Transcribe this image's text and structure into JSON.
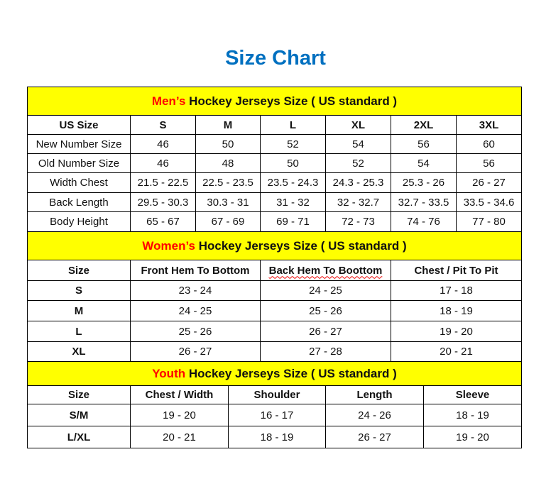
{
  "title": "Size Chart",
  "colors": {
    "title": "#0070C0",
    "header_bg": "#FFFF00",
    "accent_red": "#FF0000"
  },
  "men": {
    "header_accent": "Men’s",
    "header_rest": " Hockey Jerseys Size ( US standard )",
    "columns": [
      "US Size",
      "S",
      "M",
      "L",
      "XL",
      "2XL",
      "3XL"
    ],
    "rows": [
      [
        "New Number Size",
        "46",
        "50",
        "52",
        "54",
        "56",
        "60"
      ],
      [
        "Old Number Size",
        "46",
        "48",
        "50",
        "52",
        "54",
        "56"
      ],
      [
        "Width Chest",
        "21.5 - 22.5",
        "22.5 - 23.5",
        "23.5 - 24.3",
        "24.3 - 25.3",
        "25.3 - 26",
        "26 - 27"
      ],
      [
        "Back Length",
        "29.5 - 30.3",
        "30.3 - 31",
        "31 - 32",
        "32 - 32.7",
        "32.7 - 33.5",
        "33.5 - 34.6"
      ],
      [
        "Body Height",
        "65 - 67",
        "67 - 69",
        "69 - 71",
        "72 - 73",
        "74 - 76",
        "77 - 80"
      ]
    ]
  },
  "women": {
    "header_accent": "Women’s",
    "header_rest": " Hockey Jerseys Size ( US standard )",
    "columns": [
      "Size",
      "Front Hem To Bottom",
      "Back Hem To Boottom",
      "Chest / Pit To Pit"
    ],
    "rows": [
      [
        "S",
        "23 - 24",
        "24 - 25",
        "17 - 18"
      ],
      [
        "M",
        "24 - 25",
        "25 - 26",
        "18 - 19"
      ],
      [
        "L",
        "25 - 26",
        "26 - 27",
        "19 - 20"
      ],
      [
        "XL",
        "26 - 27",
        "27 - 28",
        "20 - 21"
      ]
    ]
  },
  "youth": {
    "header_accent": "Youth",
    "header_rest": " Hockey Jerseys Size ( US standard )",
    "columns": [
      "Size",
      "Chest / Width",
      "Shoulder",
      "Length",
      "Sleeve"
    ],
    "rows": [
      [
        "S/M",
        "19 - 20",
        "16 - 17",
        "24 - 26",
        "18 - 19"
      ],
      [
        "L/XL",
        "20 - 21",
        "18 - 19",
        "26 - 27",
        "19 - 20"
      ]
    ]
  }
}
